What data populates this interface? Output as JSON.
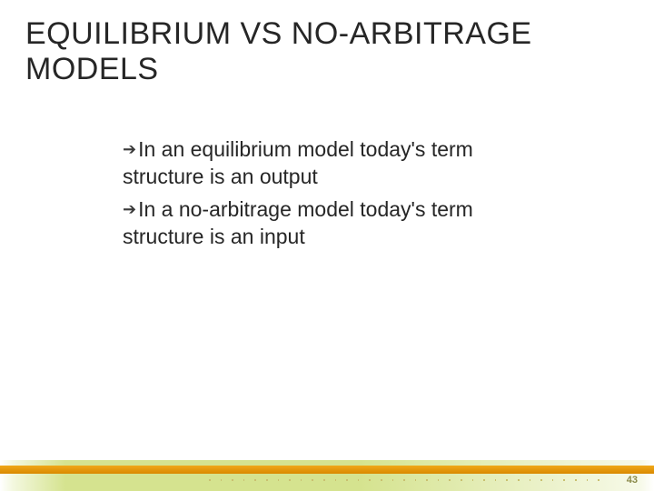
{
  "title": "EQUILIBRIUM VS NO-ARBITRAGE MODELS",
  "bullets": [
    "In an equilibrium model today's term structure  is an output",
    "In a no-arbitrage model today's term structure  is an input"
  ],
  "page_number": "43",
  "colors": {
    "text": "#262626",
    "band": "#d5e38f",
    "stripe": "#e09410",
    "dot": "#c9c070",
    "pagenum": "#8a8a4a"
  }
}
